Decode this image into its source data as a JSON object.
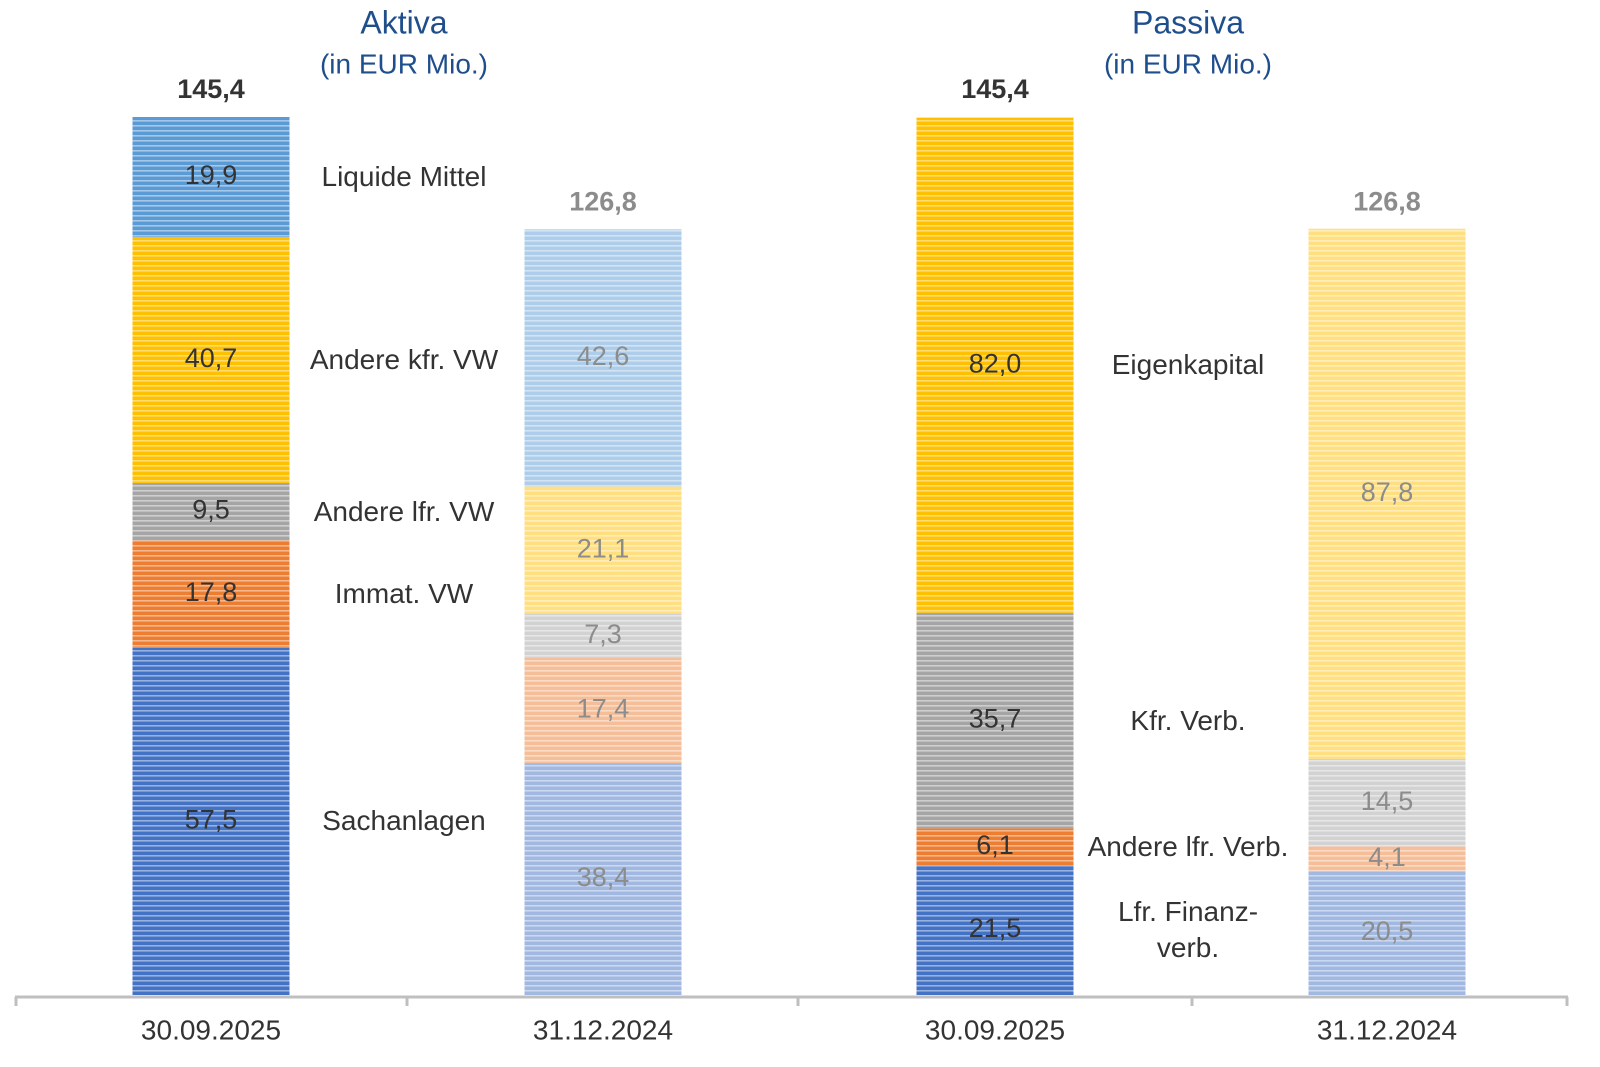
{
  "chart_data": [
    {
      "type": "stacked_bar",
      "title": "Aktiva",
      "subtitle": "(in EUR Mio.)",
      "categories": [
        "30.09.2025",
        "31.12.2024"
      ],
      "totals": [
        145.4,
        126.8
      ],
      "total_labels": [
        "145,4",
        "126,8"
      ],
      "series": [
        {
          "name": "Sachanlagen",
          "color": "#4472c4",
          "values": [
            57.5,
            38.4
          ],
          "value_labels": [
            "57,5",
            "38,4"
          ]
        },
        {
          "name": "Immat. VW",
          "color": "#ed7d31",
          "values": [
            17.8,
            17.4
          ],
          "value_labels": [
            "17,8",
            "17,4"
          ]
        },
        {
          "name": "Andere lfr. VW",
          "color": "#a5a5a5",
          "values": [
            9.5,
            7.3
          ],
          "value_labels": [
            "9,5",
            "7,3"
          ]
        },
        {
          "name": "Andere kfr. VW",
          "color": "#ffc000",
          "values": [
            40.7,
            21.1
          ],
          "value_labels": [
            "40,7",
            "21,1"
          ]
        },
        {
          "name": "Liquide Mittel",
          "color": "#5b9bd5",
          "values": [
            19.9,
            42.6
          ],
          "value_labels": [
            "19,9",
            "42,6"
          ]
        }
      ]
    },
    {
      "type": "stacked_bar",
      "title": "Passiva",
      "subtitle": "(in EUR Mio.)",
      "categories": [
        "30.09.2025",
        "31.12.2024"
      ],
      "totals": [
        145.4,
        126.8
      ],
      "total_labels": [
        "145,4",
        "126,8"
      ],
      "series": [
        {
          "name": "Lfr. Finanz-\nverb.",
          "color": "#4472c4",
          "values": [
            21.5,
            20.5
          ],
          "value_labels": [
            "21,5",
            "20,5"
          ]
        },
        {
          "name": "Andere lfr. Verb.",
          "color": "#ed7d31",
          "values": [
            6.1,
            4.1
          ],
          "value_labels": [
            "6,1",
            "4,1"
          ]
        },
        {
          "name": "Kfr. Verb.",
          "color": "#a5a5a5",
          "values": [
            35.7,
            14.5
          ],
          "value_labels": [
            "35,7",
            "14,5"
          ]
        },
        {
          "name": "Eigenkapital",
          "color": "#ffc000",
          "values": [
            82.0,
            87.8
          ],
          "value_labels": [
            "82,0",
            "87,8"
          ]
        }
      ]
    }
  ]
}
